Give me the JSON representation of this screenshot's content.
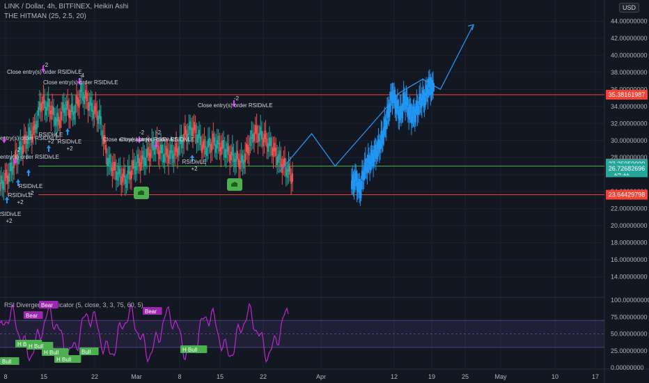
{
  "header": {
    "symbol_line": "LINK / Dollar, 4h, BITFINEX, Heikin Ashi",
    "strategy_line": "THE HITMAN (25, 2.5, 20)",
    "currency": "USD"
  },
  "colors": {
    "bg": "#131722",
    "grid": "#1e222d",
    "up": "#26a69a",
    "down": "#ef5350",
    "proj": "#2196f3",
    "resistance": "#f44336",
    "support": "#4caf50",
    "rsi": "#c026d3",
    "signal_up": "#2196f3",
    "signal_down": "#e040fb"
  },
  "chart_data": [
    {
      "type": "candlestick",
      "ylim": [
        12.0,
        46.0
      ],
      "y_ticks": [
        "44.00000000",
        "42.00000000",
        "40.00000000",
        "38.00000000",
        "36.00000000",
        "34.00000000",
        "32.00000000",
        "30.00000000",
        "28.00000000",
        "26.00000000",
        "24.00000000",
        "22.00000000",
        "20.00000000",
        "18.00000000",
        "16.00000000",
        "14.00000000"
      ],
      "x_ticks": [
        "8",
        "15",
        "22",
        "Mar",
        "8",
        "15",
        "22",
        "Apr",
        "12",
        "19",
        "25",
        "May",
        "10",
        "17"
      ],
      "price_tags": [
        {
          "label": "35.38161987",
          "value": 35.38,
          "color": "#f44336"
        },
        {
          "label": "27.29500000",
          "value": 27.295,
          "color": "#f44336"
        },
        {
          "label": "27.25050000",
          "value": 27.25,
          "color": "#26a69a",
          "countdown": "24:11"
        },
        {
          "label": "26.72682696",
          "value": 26.73,
          "color": "#26a69a"
        },
        {
          "label": "23.64429798",
          "value": 23.64,
          "color": "#f44336"
        }
      ],
      "levels": [
        {
          "name": "resistance",
          "value": 35.38
        },
        {
          "name": "support",
          "value": 27.0
        },
        {
          "name": "floor",
          "value": 23.64
        }
      ],
      "projection_path": [
        [
          0,
          26.2
        ],
        [
          0.17,
          30.8
        ],
        [
          0.29,
          27.0
        ],
        [
          0.62,
          35.6
        ],
        [
          0.74,
          37.2
        ],
        [
          0.83,
          36.0
        ],
        [
          1.0,
          43.6
        ]
      ],
      "price_segments": [
        {
          "name": "history",
          "start": "Feb 7",
          "end": "Mar 27",
          "points": [
            [
              0,
              24.6
            ],
            [
              0.03,
              26.0
            ],
            [
              0.05,
              27.5
            ],
            [
              0.07,
              28.9
            ],
            [
              0.09,
              30.0
            ],
            [
              0.12,
              31.3
            ],
            [
              0.14,
              34.4
            ],
            [
              0.17,
              33.8
            ],
            [
              0.2,
              32.0
            ],
            [
              0.22,
              34.0
            ],
            [
              0.25,
              33.2
            ],
            [
              0.28,
              35.7
            ],
            [
              0.31,
              34.0
            ],
            [
              0.34,
              32.8
            ],
            [
              0.37,
              27.5
            ],
            [
              0.4,
              26.2
            ],
            [
              0.43,
              25.4
            ],
            [
              0.46,
              27.0
            ],
            [
              0.5,
              28.0
            ],
            [
              0.53,
              29.5
            ],
            [
              0.56,
              28.3
            ],
            [
              0.6,
              28.5
            ],
            [
              0.63,
              30.5
            ],
            [
              0.66,
              31.5
            ],
            [
              0.7,
              29.0
            ],
            [
              0.73,
              29.8
            ],
            [
              0.76,
              29.2
            ],
            [
              0.8,
              28.0
            ],
            [
              0.83,
              27.4
            ],
            [
              0.87,
              31.0
            ],
            [
              0.9,
              30.4
            ],
            [
              0.93,
              29.2
            ],
            [
              0.96,
              27.5
            ],
            [
              1.0,
              25.8
            ]
          ]
        },
        {
          "name": "forecast",
          "start": "Apr 3",
          "end": "Apr 19",
          "points": [
            [
              0,
              24.8
            ],
            [
              0.05,
              25.5
            ],
            [
              0.1,
              24.0
            ],
            [
              0.15,
              26.5
            ],
            [
              0.2,
              27.3
            ],
            [
              0.26,
              28.0
            ],
            [
              0.32,
              29.0
            ],
            [
              0.38,
              30.5
            ],
            [
              0.44,
              33.0
            ],
            [
              0.5,
              35.5
            ],
            [
              0.55,
              34.0
            ],
            [
              0.6,
              33.0
            ],
            [
              0.65,
              35.0
            ],
            [
              0.7,
              33.5
            ],
            [
              0.75,
              32.8
            ],
            [
              0.8,
              33.6
            ],
            [
              0.85,
              34.8
            ],
            [
              0.9,
              35.0
            ],
            [
              0.95,
              36.5
            ],
            [
              1.0,
              36.0
            ]
          ]
        }
      ],
      "signals": [
        {
          "kind": "entry",
          "label": "RSIDivLE",
          "qty": "+2"
        },
        {
          "kind": "entry",
          "label": "RSIDivLE",
          "qty": "+2"
        },
        {
          "kind": "entry",
          "label": "RSIDivLE",
          "qty": "+2"
        },
        {
          "kind": "entry",
          "label": "RSIDivLE",
          "qty": "+2"
        },
        {
          "kind": "entry",
          "label": "RSIDivLE",
          "qty": "+2"
        },
        {
          "kind": "entry",
          "label": "RSIDivLE",
          "qty": "+2"
        },
        {
          "kind": "exit",
          "label": "Close entry(s) order RSIDivLE",
          "qty": "-2"
        },
        {
          "kind": "exit",
          "label": "Close entry(s) order RSIDivLE",
          "qty": "-4"
        },
        {
          "kind": "exit",
          "label": "Close entry(s) order RSIDivLE",
          "qty": "-2"
        },
        {
          "kind": "exit",
          "label": "Close entry(s) order RSIDivLE",
          "qty": "-2"
        },
        {
          "kind": "exit",
          "label": "entry(s) order RSIDivLE",
          "qty": "-2"
        },
        {
          "kind": "exit",
          "label": "entry(s) order RSIDivLE",
          "qty": ""
        },
        {
          "kind": "exit",
          "label": "Close entry(s) order RSIDivLE",
          "qty": "-2"
        }
      ]
    },
    {
      "type": "line",
      "title": "RSI Divergence Indicator (5, close, 3, 3, 75, 60, 5)",
      "ylim": [
        0,
        100
      ],
      "y_ticks": [
        "100.00000000",
        "75.00000000",
        "50.00000000",
        "25.00000000",
        "0.00000000"
      ],
      "band": [
        30,
        70
      ],
      "midline": 50,
      "labels": [
        {
          "text": "Bear",
          "kind": "bear"
        },
        {
          "text": "Bear",
          "kind": "bear"
        },
        {
          "text": "Bear",
          "kind": "bear"
        },
        {
          "text": "H Bull",
          "kind": "bull"
        },
        {
          "text": "Bull",
          "kind": "bull"
        },
        {
          "text": "H Bull",
          "kind": "bull"
        },
        {
          "text": "H Bull",
          "kind": "bull"
        },
        {
          "text": "H Bull",
          "kind": "bull"
        },
        {
          "text": "Bull",
          "kind": "bull"
        },
        {
          "text": "H Bull",
          "kind": "bull"
        }
      ]
    }
  ]
}
